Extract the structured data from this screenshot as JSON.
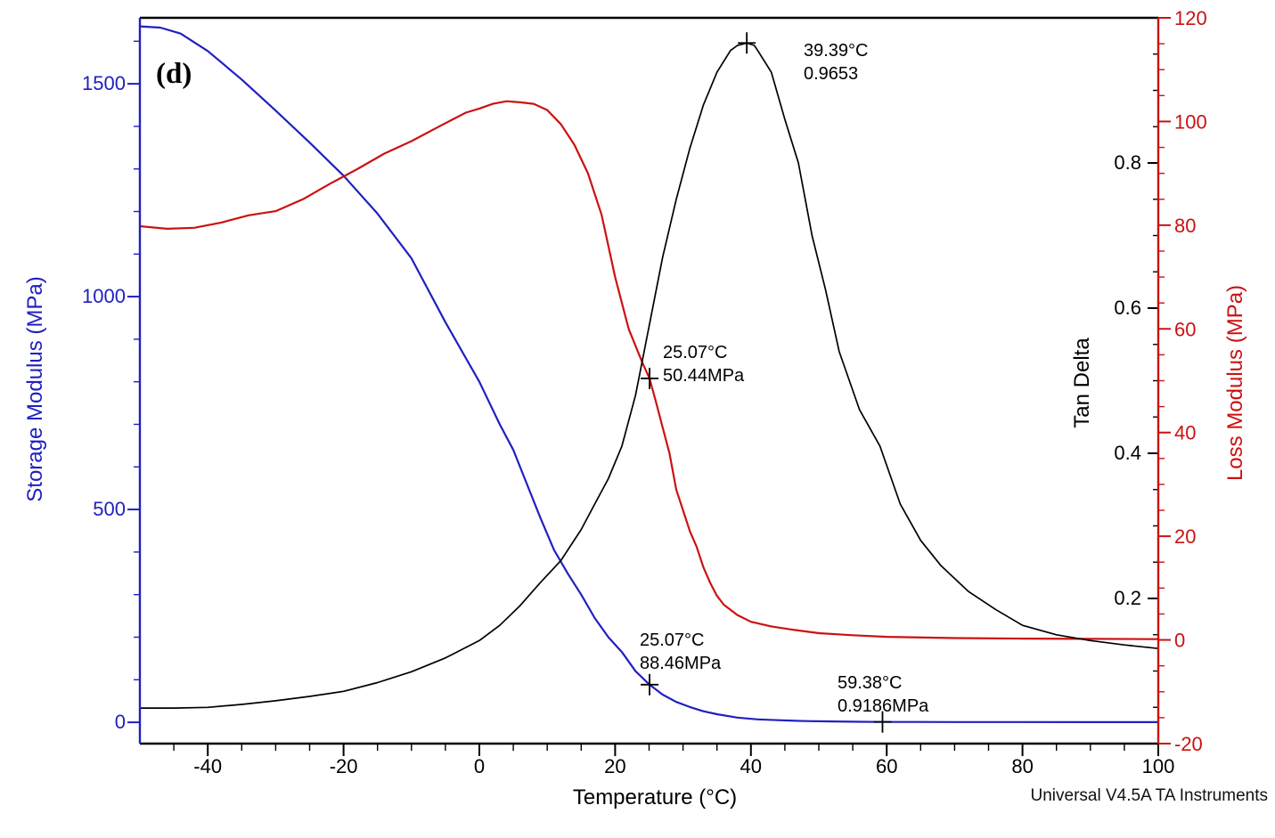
{
  "figure_label": "(d)",
  "watermark": "Universal V4.5A TA Instruments",
  "colors": {
    "storage": "#2020c0",
    "loss": "#cc1111",
    "tan": "#000000",
    "frame": "#000000"
  },
  "chart_data": {
    "type": "line",
    "title": "",
    "xlabel": "Temperature (°C)",
    "grid": false,
    "legend": "none",
    "axes": {
      "x": {
        "min": -50,
        "max": 100,
        "majors": [
          -40,
          -20,
          0,
          20,
          40,
          60,
          80,
          100
        ],
        "minor_step": 5,
        "title": "Temperature (°C)"
      },
      "storage": {
        "min": -50,
        "max": 1655,
        "majors": [
          0,
          500,
          1000,
          1500
        ],
        "minor_step": 100,
        "title": "Storage Modulus (MPa)",
        "side": "left"
      },
      "tan": {
        "min": 0,
        "max": 1.0,
        "majors": [
          0.2,
          0.4,
          0.6,
          0.8
        ],
        "minor_step": 0.05,
        "title": "Tan Delta",
        "side": "right-inner"
      },
      "loss": {
        "min": -20,
        "max": 120,
        "majors": [
          -20,
          0,
          20,
          40,
          60,
          80,
          100,
          120
        ],
        "minor_step": 5,
        "title": "Loss Modulus (MPa)",
        "side": "right-outer"
      }
    },
    "series": [
      {
        "name": "Storage Modulus (MPa)",
        "axis": "storage",
        "color_key": "storage",
        "x": [
          -50,
          -47,
          -44,
          -40,
          -35,
          -30,
          -25,
          -20,
          -15,
          -10,
          -5,
          0,
          3,
          5,
          7,
          9,
          11,
          13,
          15,
          17,
          19,
          21,
          23,
          25.07,
          27,
          29,
          31,
          33,
          35,
          38,
          41,
          44,
          48,
          52,
          56,
          59.38,
          65,
          70,
          80,
          90,
          100
        ],
        "values": [
          1635,
          1632,
          1618,
          1577,
          1510,
          1437,
          1362,
          1284,
          1195,
          1090,
          940,
          800,
          700,
          640,
          560,
          480,
          405,
          350,
          300,
          245,
          200,
          165,
          120,
          88.46,
          65,
          48,
          36,
          26,
          19,
          11,
          7,
          5,
          3,
          2,
          1.3,
          0.9186,
          0.8,
          0.7,
          0.6,
          0.5,
          0.45
        ]
      },
      {
        "name": "Loss Modulus (MPa)",
        "axis": "loss",
        "color_key": "loss",
        "x": [
          -50,
          -46,
          -42,
          -38,
          -34,
          -30,
          -26,
          -22,
          -18,
          -14,
          -10,
          -6,
          -2,
          0,
          2,
          4,
          6,
          8,
          10,
          12,
          14,
          16,
          18,
          20,
          22,
          24,
          25.07,
          26,
          27,
          28,
          29,
          30,
          31,
          32,
          33,
          34,
          35,
          36,
          38,
          40,
          43,
          46,
          50,
          55,
          60,
          70,
          80,
          90,
          100
        ],
        "values": [
          79.8,
          79.3,
          79.5,
          80.5,
          81.9,
          82.7,
          85.0,
          88.0,
          90.8,
          93.8,
          96.2,
          99.0,
          101.7,
          102.5,
          103.4,
          103.9,
          103.7,
          103.4,
          102.2,
          99.5,
          95.5,
          90.0,
          82.0,
          70.0,
          60.0,
          53.5,
          50.44,
          46,
          41,
          36,
          29,
          25,
          21,
          18,
          14,
          11,
          8.5,
          6.8,
          4.8,
          3.5,
          2.6,
          2.0,
          1.3,
          0.9,
          0.6,
          0.35,
          0.25,
          0.2,
          0.15
        ]
      },
      {
        "name": "Tan Delta",
        "axis": "tan",
        "color_key": "tan",
        "x": [
          -50,
          -45,
          -40,
          -35,
          -30,
          -25,
          -20,
          -15,
          -10,
          -5,
          0,
          3,
          6,
          9,
          12,
          15,
          17,
          19,
          21,
          23,
          25,
          27,
          29,
          31,
          33,
          35,
          37,
          38,
          39.39,
          40.5,
          41,
          43,
          45,
          47,
          49,
          51,
          53,
          56,
          59,
          62,
          65,
          68,
          72,
          76,
          80,
          85,
          90,
          95,
          100
        ],
        "values": [
          0.049,
          0.049,
          0.05,
          0.054,
          0.059,
          0.065,
          0.072,
          0.084,
          0.099,
          0.118,
          0.142,
          0.163,
          0.19,
          0.222,
          0.252,
          0.295,
          0.33,
          0.365,
          0.41,
          0.48,
          0.575,
          0.67,
          0.75,
          0.82,
          0.88,
          0.925,
          0.955,
          0.962,
          0.9653,
          0.962,
          0.955,
          0.925,
          0.86,
          0.8,
          0.7,
          0.625,
          0.54,
          0.46,
          0.41,
          0.33,
          0.28,
          0.245,
          0.21,
          0.185,
          0.163,
          0.15,
          0.142,
          0.136,
          0.131
        ]
      }
    ],
    "annotations": [
      {
        "lines": [
          "39.39°C",
          "0.9653"
        ],
        "axis": "tan",
        "x": 39.39,
        "y": 0.9653,
        "marker": true
      },
      {
        "lines": [
          "25.07°C",
          "50.44MPa"
        ],
        "axis": "loss",
        "x": 25.07,
        "y": 50.44,
        "marker": true
      },
      {
        "lines": [
          "25.07°C",
          "88.46MPa"
        ],
        "axis": "storage",
        "x": 25.07,
        "y": 88.46,
        "marker": true
      },
      {
        "lines": [
          "59.38°C",
          "0.9186MPa"
        ],
        "axis": "storage",
        "x": 59.38,
        "y": 0.9186,
        "marker": true
      }
    ]
  }
}
